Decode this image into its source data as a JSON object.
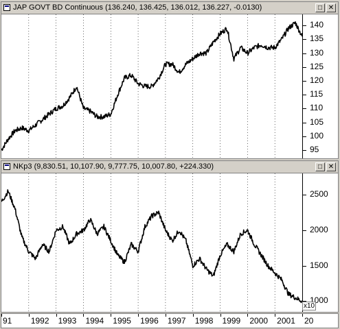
{
  "panes": [
    {
      "title": "JAP GOVT BD Continuous (136.240, 136.425, 136.012, 136.227, -0.0130)",
      "y_ticks": [
        "140",
        "135",
        "130",
        "125",
        "120",
        "115",
        "110",
        "105",
        "100",
        "95"
      ],
      "buttons": [
        "minimize",
        "close"
      ]
    },
    {
      "title": "NKp3 (9,830.51, 10,107.90, 9,777.75, 10,007.80, +224.330)",
      "y_ticks": [
        "2500",
        "2000",
        "1500",
        "1000"
      ],
      "multiplier": "x10",
      "buttons": [
        "minimize",
        "close"
      ]
    }
  ],
  "x_labels": [
    "91",
    "1992",
    "1993",
    "1994",
    "1995",
    "1996",
    "1997",
    "1998",
    "1999",
    "2000",
    "2001",
    "20"
  ],
  "colors": {
    "line": "#000000",
    "grid": "#000000",
    "frame": "#d4d0c8",
    "background": "#ffffff"
  },
  "chart_data": [
    {
      "type": "line",
      "title": "JAP GOVT BD Continuous",
      "x": [
        1991.0,
        1991.25,
        1991.5,
        1991.75,
        1992.0,
        1992.25,
        1992.5,
        1992.75,
        1993.0,
        1993.25,
        1993.5,
        1993.75,
        1994.0,
        1994.25,
        1994.5,
        1994.75,
        1995.0,
        1995.25,
        1995.5,
        1995.75,
        1996.0,
        1996.25,
        1996.5,
        1996.75,
        1997.0,
        1997.25,
        1997.5,
        1997.75,
        1998.0,
        1998.25,
        1998.5,
        1998.75,
        1999.0,
        1999.25,
        1999.5,
        1999.75,
        2000.0,
        2000.25,
        2000.5,
        2000.75,
        2001.0,
        2001.25,
        2001.5,
        2001.75,
        2002.0
      ],
      "series": [
        {
          "values": [
            95,
            99,
            102,
            103,
            102,
            104,
            106,
            108,
            110,
            111,
            114,
            118,
            110,
            109,
            107,
            107,
            108,
            115,
            121,
            122,
            119,
            118,
            118,
            121,
            126,
            126,
            123,
            126,
            128,
            130,
            130,
            134,
            137,
            139,
            128,
            132,
            130,
            132,
            133,
            132,
            132,
            135,
            139,
            141,
            136
          ]
        }
      ],
      "ylim": [
        92,
        144
      ],
      "grid": true
    },
    {
      "type": "line",
      "title": "NKp3",
      "x": [
        1991.0,
        1991.25,
        1991.5,
        1991.75,
        1992.0,
        1992.25,
        1992.5,
        1992.75,
        1993.0,
        1993.25,
        1993.5,
        1993.75,
        1994.0,
        1994.25,
        1994.5,
        1994.75,
        1995.0,
        1995.25,
        1995.5,
        1995.75,
        1996.0,
        1996.25,
        1996.5,
        1996.75,
        1997.0,
        1997.25,
        1997.5,
        1997.75,
        1998.0,
        1998.25,
        1998.5,
        1998.75,
        1999.0,
        1999.25,
        1999.5,
        1999.75,
        2000.0,
        2000.25,
        2000.5,
        2000.75,
        2001.0,
        2001.25,
        2001.5,
        2001.75,
        2002.0
      ],
      "series": [
        {
          "values": [
            2400,
            2550,
            2300,
            1900,
            1700,
            1600,
            1800,
            1700,
            2000,
            2050,
            1800,
            1950,
            2000,
            2150,
            1950,
            2050,
            1850,
            1650,
            1550,
            1800,
            1700,
            2050,
            2200,
            2250,
            2000,
            1850,
            2000,
            1850,
            1500,
            1600,
            1450,
            1350,
            1650,
            1800,
            1700,
            1950,
            2000,
            1800,
            1650,
            1500,
            1400,
            1300,
            1100,
            1050,
            1000
          ]
        }
      ],
      "ylim": [
        850,
        2800
      ],
      "multiplier": "x10",
      "grid": true
    }
  ]
}
